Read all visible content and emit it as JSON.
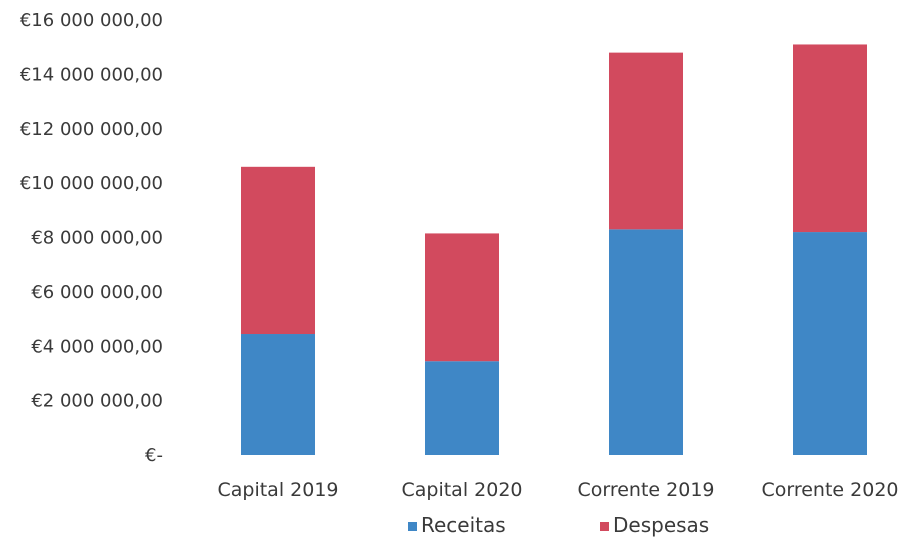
{
  "chart_data": {
    "type": "bar",
    "stacked": true,
    "categories": [
      "Capital 2019",
      "Capital 2020",
      "Corrente 2019",
      "Corrente 2020"
    ],
    "series": [
      {
        "name": "Receitas",
        "color": "#3f87c6",
        "values": [
          4450000,
          3450000,
          8300000,
          8200000
        ]
      },
      {
        "name": "Despesas",
        "color": "#d24a5e",
        "values": [
          6150000,
          4700000,
          6500000,
          6900000
        ]
      }
    ],
    "ylim": [
      0,
      16000000
    ],
    "yticks": [
      0,
      2000000,
      4000000,
      6000000,
      8000000,
      10000000,
      12000000,
      14000000,
      16000000
    ],
    "ytick_labels": [
      "€-",
      "€2 000 000,00",
      "€4 000 000,00",
      "€6 000 000,00",
      "€8 000 000,00",
      "€10 000 000,00",
      "€12 000 000,00",
      "€14 000 000,00",
      "€16 000 000,00"
    ],
    "grid": false,
    "legend": "bottom",
    "title": "",
    "xlabel": "",
    "ylabel": ""
  }
}
